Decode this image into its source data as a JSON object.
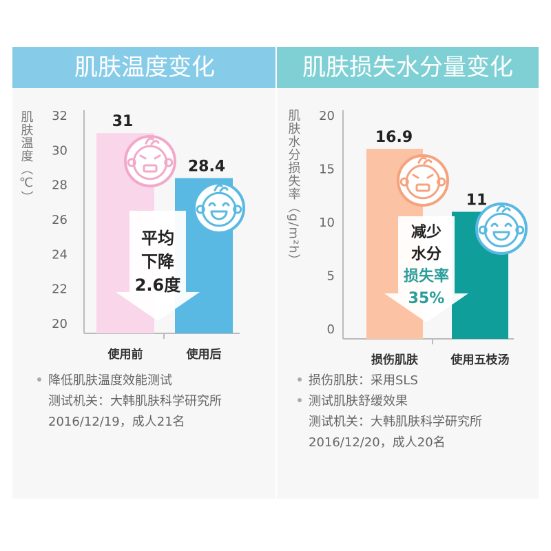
{
  "colors": {
    "header_left": "#86cbe8",
    "header_right": "#7fd0d4",
    "bar_before": "#f9d6e9",
    "bar_after_temp": "#59b9e2",
    "bar_damaged": "#fbc3a3",
    "bar_after_water": "#0f9e9a",
    "accent_teal": "#2a9d9a",
    "arrow_fill": "#ffffff"
  },
  "left": {
    "header": "肌肤温度变化",
    "arrow_text": [
      "平均",
      "下降",
      "2.6度"
    ],
    "icons": [
      "sad-baby-face-icon",
      "happy-baby-face-icon"
    ],
    "notes": {
      "bullets": [
        "降低肌肤温度效能测试"
      ],
      "lines": [
        "测试机关：大韩肌肤科学研究所",
        "2016/12/19，成人21名"
      ]
    }
  },
  "right": {
    "header": "肌肤损失水分量变化",
    "arrow_text": [
      "减少",
      "水分",
      "损失率",
      "35%"
    ],
    "icons": [
      "angry-baby-face-icon",
      "happy-baby-face-icon"
    ],
    "notes": {
      "bullets": [
        "损伤肌肤：采用SLS",
        "测试肌肤舒缓效果"
      ],
      "lines": [
        "测试机关：大韩肌肤科学研究所",
        "2016/12/20，成人20名"
      ]
    }
  },
  "chart_data": [
    {
      "type": "bar",
      "categories": [
        "使用前",
        "使用后"
      ],
      "values": [
        31,
        28.4
      ],
      "value_labels": [
        "31",
        "28.4"
      ],
      "ylabel": "肌肤温度（℃）",
      "ylim": [
        20,
        32
      ],
      "yticks": [
        20,
        22,
        24,
        26,
        28,
        30,
        32
      ]
    },
    {
      "type": "bar",
      "categories": [
        "损伤肌肤",
        "使用五枝汤"
      ],
      "values": [
        16.9,
        11
      ],
      "value_labels": [
        "16.9",
        "11"
      ],
      "ylabel": "肌肤水分损失率（g/m²h）",
      "ylim": [
        0,
        20
      ],
      "yticks": [
        0,
        5,
        10,
        15,
        20
      ]
    }
  ]
}
